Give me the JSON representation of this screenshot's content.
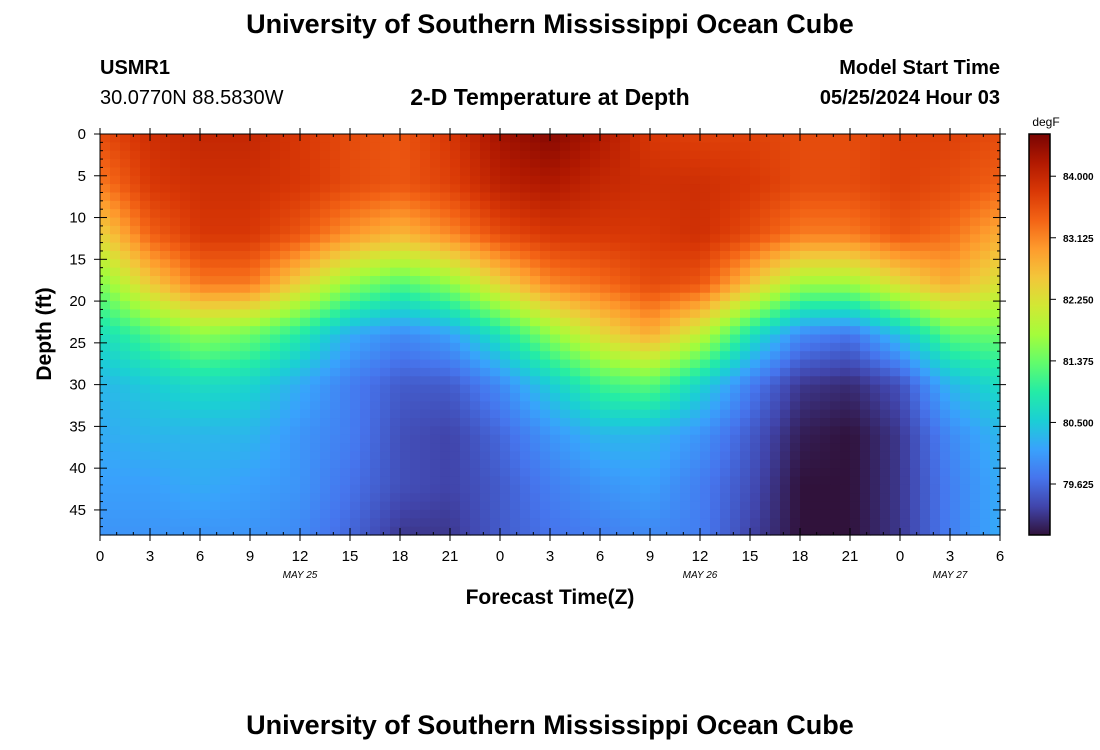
{
  "header": {
    "title": "University of Southern Mississippi Ocean Cube",
    "station_id": "USMR1",
    "coords": "30.0770N  88.5830W",
    "plot_title": "2-D Temperature at Depth",
    "model_label": "Model Start Time",
    "model_time": "05/25/2024 Hour 03"
  },
  "footer": {
    "title": "University of Southern Mississippi Ocean Cube"
  },
  "colorbar": {
    "unit": "degF",
    "min": 78.9,
    "max": 84.6,
    "labels": [
      "84.000",
      "83.125",
      "82.250",
      "81.375",
      "80.500",
      "79.625"
    ],
    "label_values": [
      84.0,
      83.125,
      82.25,
      81.375,
      80.5,
      79.625
    ],
    "colormap": [
      "#30123b",
      "#4145ab",
      "#4675ed",
      "#39a2fc",
      "#1bcfd4",
      "#24eca6",
      "#61fc6c",
      "#a4fc3b",
      "#d1e834",
      "#f3c63a",
      "#fe9b2d",
      "#f36315",
      "#d93806",
      "#b11901",
      "#7a0402"
    ]
  },
  "chart_data": {
    "type": "heatmap",
    "title": "2-D Temperature at Depth",
    "xlabel": "Forecast Time(Z)",
    "ylabel": "Depth (ft)",
    "xlim": [
      0,
      54
    ],
    "ylim": [
      48,
      0
    ],
    "x_tick_labels": [
      "0",
      "3",
      "6",
      "9",
      "12",
      "15",
      "18",
      "21",
      "0",
      "3",
      "6",
      "9",
      "12",
      "15",
      "18",
      "21",
      "0",
      "3",
      "6"
    ],
    "y_ticks": [
      0,
      5,
      10,
      15,
      20,
      25,
      30,
      35,
      40,
      45
    ],
    "date_labels": [
      {
        "text": "MAY 25",
        "hour": 12
      },
      {
        "text": "MAY 26",
        "hour": 36
      },
      {
        "text": "MAY 27",
        "hour": 51
      }
    ],
    "units": "degF",
    "grid_hours": [
      0,
      3,
      6,
      9,
      12,
      15,
      18,
      21,
      24,
      27,
      30,
      33,
      36,
      39,
      42,
      45,
      48,
      51,
      54
    ],
    "grid_depths": [
      0,
      6,
      12,
      18,
      24,
      30,
      36,
      42,
      48
    ],
    "values": [
      [
        83.6,
        83.9,
        84.0,
        84.0,
        83.8,
        83.6,
        83.5,
        83.8,
        84.3,
        84.5,
        84.2,
        83.8,
        83.7,
        83.7,
        83.6,
        83.6,
        83.7,
        83.7,
        83.6
      ],
      [
        83.2,
        83.8,
        83.9,
        83.9,
        83.8,
        83.6,
        83.5,
        83.7,
        84.1,
        84.2,
        84.0,
        83.9,
        83.9,
        83.8,
        83.6,
        83.6,
        83.7,
        83.6,
        83.4
      ],
      [
        82.4,
        83.4,
        83.8,
        83.8,
        83.5,
        83.0,
        82.7,
        83.1,
        83.6,
        83.8,
        83.8,
        83.8,
        83.9,
        83.6,
        83.2,
        83.2,
        83.5,
        83.3,
        82.8
      ],
      [
        81.5,
        82.5,
        83.2,
        83.2,
        82.4,
        81.6,
        81.2,
        81.6,
        82.4,
        83.1,
        83.3,
        83.6,
        83.5,
        82.6,
        81.7,
        81.7,
        82.3,
        82.8,
        82.2
      ],
      [
        80.7,
        81.2,
        81.6,
        81.4,
        80.9,
        80.2,
        79.9,
        80.1,
        80.8,
        81.6,
        82.3,
        82.8,
        82.0,
        80.8,
        79.9,
        79.7,
        80.4,
        81.3,
        81.4
      ],
      [
        80.3,
        80.5,
        80.7,
        80.6,
        80.2,
        79.8,
        79.5,
        79.5,
        79.9,
        80.5,
        81.1,
        81.3,
        80.6,
        79.8,
        79.2,
        79.1,
        79.4,
        80.3,
        80.7
      ],
      [
        80.2,
        80.3,
        80.3,
        80.3,
        80.0,
        79.8,
        79.4,
        79.3,
        79.6,
        80.0,
        80.3,
        80.3,
        80.0,
        79.5,
        79.0,
        78.9,
        79.2,
        79.9,
        80.3
      ],
      [
        80.1,
        80.1,
        80.2,
        80.1,
        80.0,
        79.7,
        79.4,
        79.3,
        79.5,
        79.8,
        80.0,
        80.1,
        79.8,
        79.4,
        78.9,
        78.9,
        79.2,
        79.8,
        80.2
      ],
      [
        80.0,
        80.0,
        80.0,
        80.0,
        79.9,
        79.6,
        79.2,
        79.2,
        79.5,
        79.7,
        79.8,
        79.9,
        79.8,
        79.3,
        78.9,
        78.9,
        79.2,
        79.8,
        80.2
      ]
    ]
  }
}
